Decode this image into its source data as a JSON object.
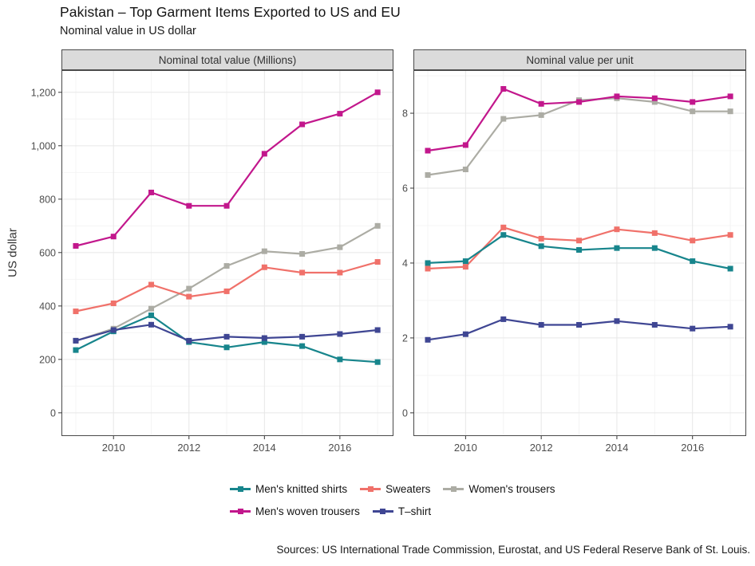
{
  "header": {
    "title": "Pakistan – Top Garment Items Exported to US and EU",
    "subtitle": "Nominal value in US dollar"
  },
  "y_axis_title": "US dollar",
  "source": "Sources: US International Trade Commission, Eurostat, and US Federal Reserve Bank of St. Louis.",
  "colors": {
    "mens_knitted_shirts": "#17858C",
    "sweaters": "#F0716A",
    "womens_trousers": "#ACACA4",
    "mens_woven_trousers": "#C2178C",
    "tshirt": "#3F4693",
    "strip_background": "#DBDBDB",
    "panel_border": "#4A4A4A",
    "grid_major": "#E7E7E7",
    "grid_minor": "#F4F4F4"
  },
  "legend": {
    "items": [
      {
        "label": "Men's knitted shirts",
        "color": "#17858C"
      },
      {
        "label": "Sweaters",
        "color": "#F0716A"
      },
      {
        "label": "Women's trousers",
        "color": "#ACACA4"
      },
      {
        "label": "Men's woven trousers",
        "color": "#C2178C"
      },
      {
        "label": "T–shirt",
        "color": "#3F4693"
      }
    ]
  },
  "chart_data": [
    {
      "type": "line",
      "panel_title": "Nominal total value (Millions)",
      "x": [
        2009,
        2010,
        2011,
        2012,
        2013,
        2014,
        2015,
        2016,
        2017
      ],
      "x_domain": [
        2008.62,
        2017.42
      ],
      "x_major_ticks": [
        2010,
        2012,
        2014,
        2016
      ],
      "x_major_labels": [
        "2010",
        "2012",
        "2014",
        "2016"
      ],
      "x_minor_ticks": [
        2009,
        2011,
        2013,
        2015,
        2017
      ],
      "y_domain": [
        -87,
        1283
      ],
      "y_tick_values": [
        0,
        200,
        400,
        600,
        800,
        1000,
        1200
      ],
      "y_tick_labels": [
        "0",
        "200",
        "400",
        "600",
        "800",
        "1,000",
        "1,200"
      ],
      "y_minor_values": [
        100,
        300,
        500,
        700,
        900,
        1100
      ],
      "series": [
        {
          "name": "Women's trousers",
          "color": "#ACACA4",
          "values": [
            270,
            315,
            390,
            465,
            550,
            605,
            595,
            620,
            700
          ]
        },
        {
          "name": "Sweaters",
          "color": "#F0716A",
          "values": [
            380,
            410,
            480,
            435,
            455,
            545,
            525,
            525,
            565
          ]
        },
        {
          "name": "Men's knitted shirts",
          "color": "#17858C",
          "values": [
            235,
            305,
            365,
            265,
            245,
            265,
            250,
            200,
            190
          ]
        },
        {
          "name": "T–shirt",
          "color": "#3F4693",
          "values": [
            270,
            310,
            330,
            270,
            285,
            280,
            285,
            295,
            310
          ]
        },
        {
          "name": "Men's woven trousers",
          "color": "#C2178C",
          "values": [
            625,
            660,
            825,
            775,
            775,
            970,
            1080,
            1120,
            1200
          ]
        }
      ]
    },
    {
      "type": "line",
      "panel_title": "Nominal value per unit",
      "x": [
        2009,
        2010,
        2011,
        2012,
        2013,
        2014,
        2015,
        2016,
        2017
      ],
      "x_domain": [
        2008.62,
        2017.42
      ],
      "x_major_ticks": [
        2010,
        2012,
        2014,
        2016
      ],
      "x_major_labels": [
        "2010",
        "2012",
        "2014",
        "2016"
      ],
      "x_minor_ticks": [
        2009,
        2011,
        2013,
        2015,
        2017
      ],
      "y_domain": [
        -0.62,
        9.15
      ],
      "y_tick_values": [
        0,
        2,
        4,
        6,
        8
      ],
      "y_tick_labels": [
        "0",
        "2",
        "4",
        "6",
        "8"
      ],
      "y_minor_values": [
        1,
        3,
        5,
        7,
        9
      ],
      "series": [
        {
          "name": "Women's trousers",
          "color": "#ACACA4",
          "values": [
            6.35,
            6.5,
            7.85,
            7.95,
            8.35,
            8.4,
            8.3,
            8.05,
            8.05
          ]
        },
        {
          "name": "Sweaters",
          "color": "#F0716A",
          "values": [
            3.85,
            3.9,
            4.95,
            4.65,
            4.6,
            4.9,
            4.8,
            4.6,
            4.75
          ]
        },
        {
          "name": "Men's knitted shirts",
          "color": "#17858C",
          "values": [
            4.0,
            4.05,
            4.75,
            4.45,
            4.35,
            4.4,
            4.4,
            4.05,
            3.85
          ]
        },
        {
          "name": "T–shirt",
          "color": "#3F4693",
          "values": [
            1.95,
            2.1,
            2.5,
            2.35,
            2.35,
            2.45,
            2.35,
            2.25,
            2.3
          ]
        },
        {
          "name": "Men's woven trousers",
          "color": "#C2178C",
          "values": [
            7.0,
            7.15,
            8.65,
            8.25,
            8.3,
            8.45,
            8.4,
            8.3,
            8.45
          ]
        }
      ]
    }
  ]
}
